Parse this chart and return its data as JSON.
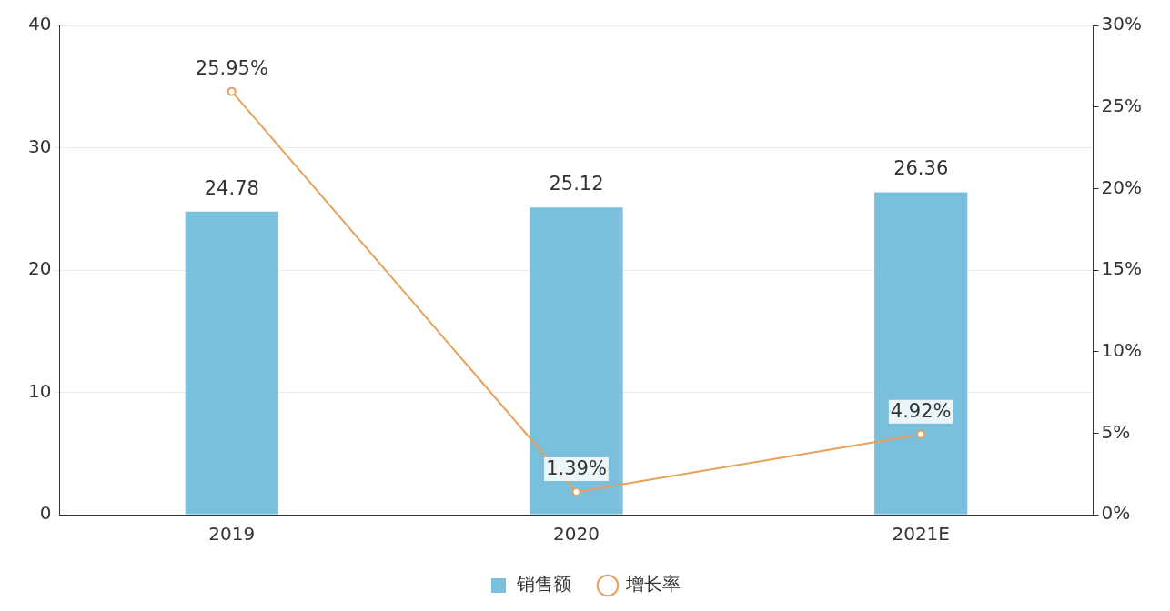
{
  "chart_data": {
    "type": "bar",
    "categories": [
      "2019",
      "2020",
      "2021E"
    ],
    "series": [
      {
        "name": "销售额",
        "color": "#7abfdc",
        "values": [
          24.78,
          25.12,
          26.36
        ],
        "value_labels": [
          "24.78",
          "25.12",
          "26.36"
        ]
      },
      {
        "name": "增长率",
        "type": "line",
        "axis": "y2",
        "color": "#e8a05a",
        "values": [
          25.95,
          1.39,
          4.92
        ],
        "value_labels": [
          "25.95%",
          "1.39%",
          "4.92%"
        ]
      }
    ],
    "ylim": [
      0,
      40
    ],
    "yticks": [
      0,
      10,
      20,
      30,
      40
    ],
    "y2lim": [
      0,
      30
    ],
    "y2ticks": [
      {
        "value": 0,
        "label": "0%"
      },
      {
        "value": 5,
        "label": "5%"
      },
      {
        "value": 10,
        "label": "10%"
      },
      {
        "value": 15,
        "label": "15%"
      },
      {
        "value": 20,
        "label": "20%"
      },
      {
        "value": 25,
        "label": "25%"
      },
      {
        "value": 30,
        "label": "30%"
      }
    ],
    "grid": "y",
    "legend": "bottom",
    "marker": "circle",
    "line_style": "solid"
  }
}
